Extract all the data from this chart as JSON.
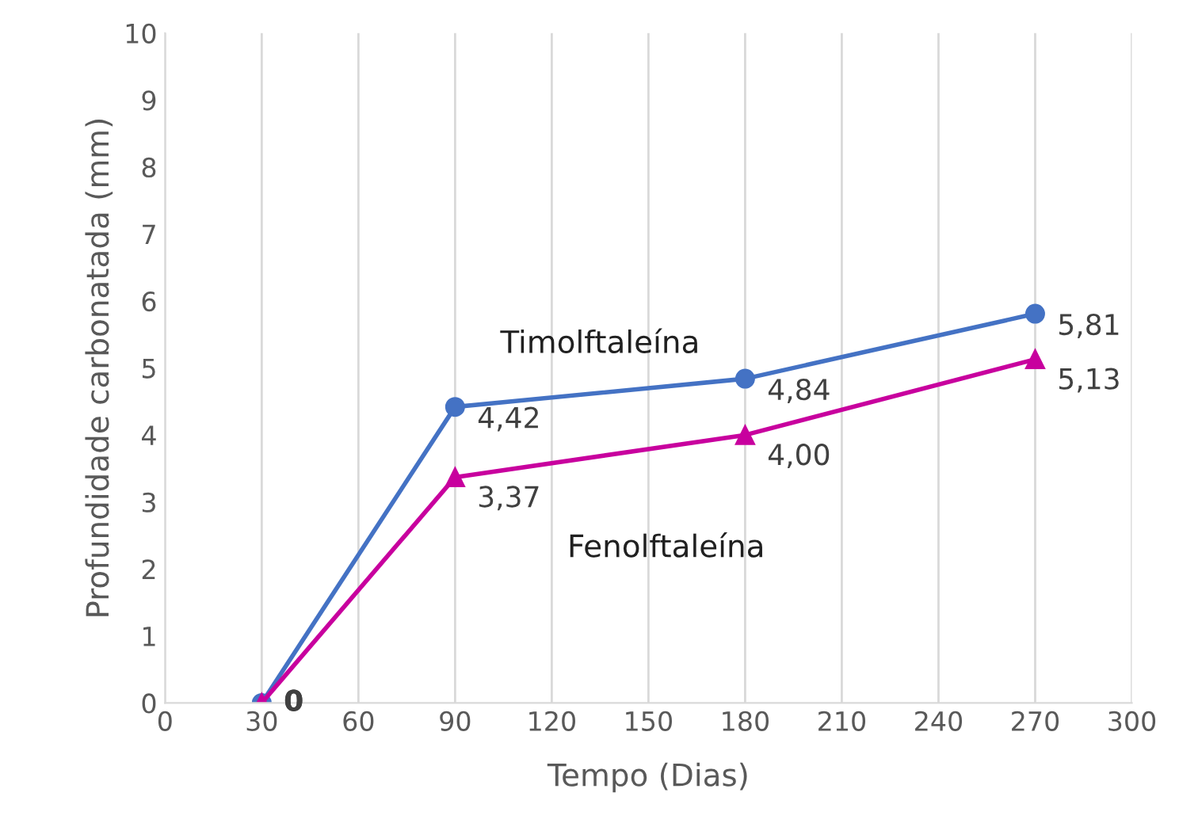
{
  "chart_data": {
    "type": "line",
    "xlabel": "Tempo (Dias)",
    "ylabel": "Profundidade carbonatada (mm)",
    "x": [
      30,
      90,
      180,
      270
    ],
    "series": [
      {
        "name": "Timolftaleína",
        "color": "#4472c4",
        "marker": "circle",
        "values": [
          0,
          4.42,
          4.84,
          5.81
        ],
        "value_labels": [
          "0",
          "4,42",
          "4,84",
          "5,81"
        ]
      },
      {
        "name": "Fenolftaleína",
        "color": "#c8009e",
        "marker": "triangle",
        "values": [
          0,
          3.37,
          4.0,
          5.13
        ],
        "value_labels": [
          "0",
          "3,37",
          "4,00",
          "5,13"
        ]
      }
    ],
    "xlim": [
      0,
      300
    ],
    "xticks": [
      0,
      30,
      60,
      90,
      120,
      150,
      180,
      210,
      240,
      270,
      300
    ],
    "ylim": [
      0,
      10
    ],
    "yticks": [
      0,
      1,
      2,
      3,
      4,
      5,
      6,
      7,
      8,
      9,
      10
    ],
    "grid": "x",
    "legend": false
  }
}
